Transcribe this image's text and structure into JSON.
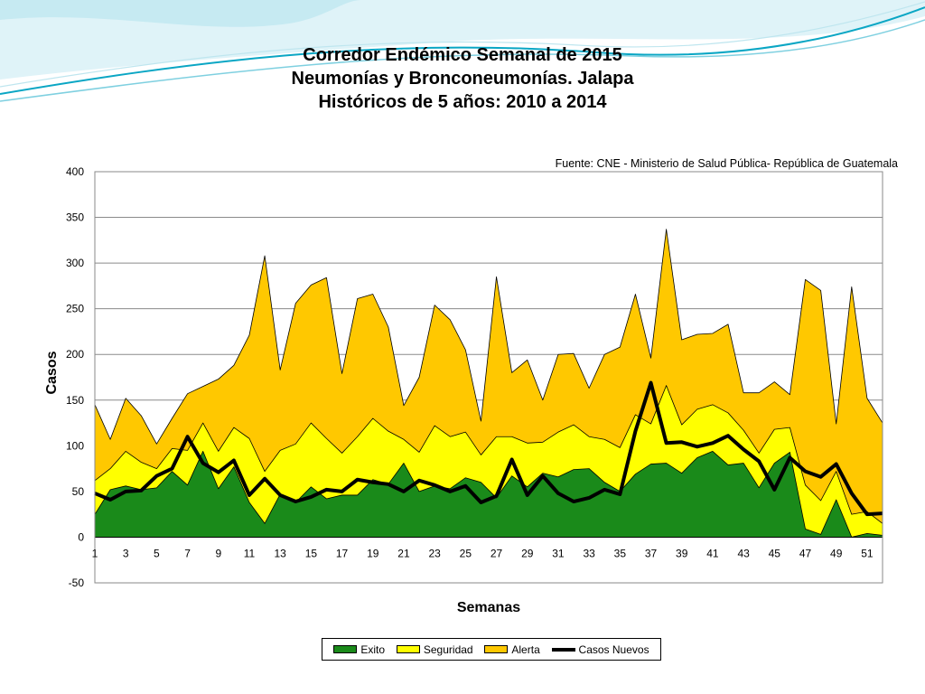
{
  "header": {
    "title_line1": "Corredor Endémico Semanal de 2015",
    "title_line2": "Neumonías y Bronconeumonías.  Jalapa",
    "title_line3": "Históricos de 5 años: 2010 a 2014"
  },
  "source_note": "Fuente: CNE - Ministerio de Salud Pública- República de Guatemala",
  "colors": {
    "exito": "#1a8a1a",
    "seguridad": "#ffff00",
    "alerta": "#ffc800",
    "casos_nuevos": "#000000",
    "deco_dark": "#0aa6c4",
    "deco_light": "#bfe6ef"
  },
  "chart_data": {
    "type": "area",
    "xlabel": "Semanas",
    "ylabel": "Casos",
    "ylim": [
      -50,
      400
    ],
    "yticks": [
      -50,
      0,
      50,
      100,
      150,
      200,
      250,
      300,
      350,
      400
    ],
    "xlim": [
      1,
      52
    ],
    "xtick_labels": [
      "1",
      "3",
      "5",
      "7",
      "9",
      "11",
      "13",
      "15",
      "17",
      "19",
      "21",
      "23",
      "25",
      "27",
      "29",
      "31",
      "33",
      "35",
      "37",
      "39",
      "41",
      "43",
      "45",
      "47",
      "49",
      "51"
    ],
    "grid": "horizontal",
    "legend_position": "bottom",
    "x": [
      1,
      2,
      3,
      4,
      5,
      6,
      7,
      8,
      9,
      10,
      11,
      12,
      13,
      14,
      15,
      16,
      17,
      18,
      19,
      20,
      21,
      22,
      23,
      24,
      25,
      26,
      27,
      28,
      29,
      30,
      31,
      32,
      33,
      34,
      35,
      36,
      37,
      38,
      39,
      40,
      41,
      42,
      43,
      44,
      45,
      46,
      47,
      48,
      49,
      50,
      51,
      52
    ],
    "series": [
      {
        "name": "Exito",
        "values": [
          25,
          52,
          56,
          52,
          54,
          72,
          57,
          94,
          53,
          77,
          38,
          15,
          47,
          38,
          55,
          42,
          46,
          46,
          63,
          58,
          81,
          50,
          56,
          53,
          65,
          60,
          43,
          67,
          55,
          70,
          66,
          74,
          75,
          60,
          50,
          69,
          80,
          81,
          70,
          87,
          94,
          79,
          81,
          54,
          81,
          93,
          9,
          3,
          41,
          0,
          4,
          2
        ]
      },
      {
        "name": "Seguridad",
        "values": [
          62,
          75,
          94,
          82,
          75,
          97,
          95,
          125,
          94,
          120,
          108,
          72,
          95,
          102,
          125,
          108,
          92,
          110,
          130,
          116,
          107,
          93,
          122,
          110,
          115,
          90,
          110,
          110,
          103,
          104,
          115,
          123,
          110,
          107,
          98,
          134,
          124,
          166,
          123,
          140,
          145,
          136,
          117,
          92,
          118,
          120,
          57,
          40,
          72,
          25,
          28,
          15
        ]
      },
      {
        "name": "Alerta",
        "values": [
          145,
          107,
          152,
          133,
          102,
          130,
          157,
          165,
          173,
          188,
          221,
          308,
          183,
          256,
          276,
          284,
          179,
          261,
          266,
          230,
          144,
          175,
          254,
          238,
          205,
          127,
          285,
          180,
          194,
          150,
          200,
          201,
          163,
          200,
          208,
          266,
          196,
          337,
          216,
          222,
          223,
          233,
          158,
          158,
          170,
          156,
          282,
          270,
          124,
          274,
          152,
          125
        ]
      },
      {
        "name": "Casos Nuevos",
        "values": [
          48,
          41,
          50,
          51,
          67,
          75,
          110,
          81,
          71,
          84,
          46,
          64,
          46,
          39,
          44,
          52,
          50,
          63,
          60,
          58,
          50,
          62,
          57,
          50,
          56,
          38,
          45,
          85,
          46,
          67,
          48,
          39,
          43,
          52,
          47,
          116,
          169,
          103,
          104,
          99,
          103,
          111,
          96,
          83,
          52,
          87,
          72,
          66,
          80,
          48,
          25,
          26
        ]
      }
    ]
  }
}
